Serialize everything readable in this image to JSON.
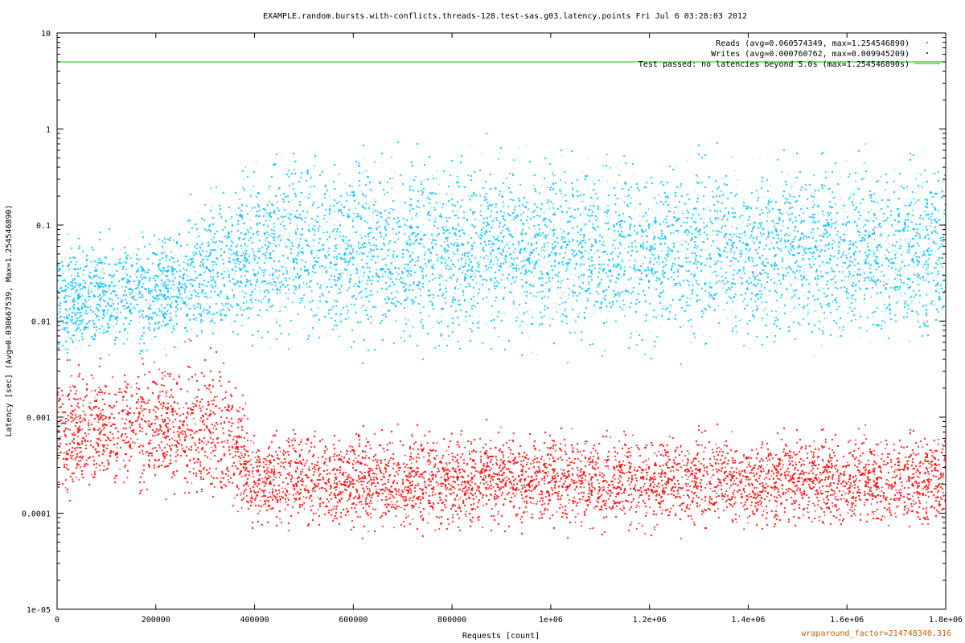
{
  "chart_data": {
    "type": "scatter",
    "title": "EXAMPLE.random.bursts.with-conflicts.threads-128.test-sas.g03.latency.points Fri Jul  6 03:28:03 2012",
    "xlabel": "Requests [count]",
    "ylabel": "Latency [sec]   (Avg=0.030667539, Max=1.254546890)",
    "x_scale": "linear",
    "y_scale": "log",
    "xlim": [
      0,
      1800000
    ],
    "ylim": [
      1e-05,
      10
    ],
    "x_ticks": [
      {
        "value": 0,
        "label": "0"
      },
      {
        "value": 200000,
        "label": "200000"
      },
      {
        "value": 400000,
        "label": "400000"
      },
      {
        "value": 600000,
        "label": "600000"
      },
      {
        "value": 800000,
        "label": "800000"
      },
      {
        "value": 1000000,
        "label": "1e+06"
      },
      {
        "value": 1200000,
        "label": "1.2e+06"
      },
      {
        "value": 1400000,
        "label": "1.4e+06"
      },
      {
        "value": 1600000,
        "label": "1.6e+06"
      },
      {
        "value": 1800000,
        "label": "1.8e+06"
      }
    ],
    "y_ticks": [
      {
        "value": 10,
        "label": "10"
      },
      {
        "value": 1,
        "label": "1"
      },
      {
        "value": 0.1,
        "label": "0.1"
      },
      {
        "value": 0.01,
        "label": "0.01"
      },
      {
        "value": 0.001,
        "label": "0.001"
      },
      {
        "value": 0.0001,
        "label": "0.0001"
      },
      {
        "value": 1e-05,
        "label": "1e-05"
      }
    ],
    "grid": false,
    "legend_position": "top-right",
    "series": [
      {
        "name": "Reads  (avg=0.060574349, max=1.254546890)",
        "kind": "points",
        "color": "#00bfff",
        "x_range": [
          0,
          1800000
        ],
        "avg": 0.060574349,
        "max": 1.25454689,
        "envelope": [
          {
            "x": 0,
            "low": 0.003,
            "high": 0.1
          },
          {
            "x": 200000,
            "low": 0.003,
            "high": 0.12
          },
          {
            "x": 300000,
            "low": 0.003,
            "high": 0.3
          },
          {
            "x": 400000,
            "low": 0.003,
            "high": 1.0
          },
          {
            "x": 600000,
            "low": 0.003,
            "high": 1.0
          },
          {
            "x": 1800000,
            "low": 0.003,
            "high": 1.0
          }
        ]
      },
      {
        "name": "Writes  (avg=0.000760762, max=0.009945209)",
        "kind": "points",
        "color": "#ff0000",
        "x_range": [
          0,
          1800000
        ],
        "avg": 0.000760762,
        "max": 0.009945209,
        "envelope": [
          {
            "x": 0,
            "low": 0.0001,
            "high": 0.005
          },
          {
            "x": 200000,
            "low": 0.0001,
            "high": 0.006
          },
          {
            "x": 350000,
            "low": 5e-05,
            "high": 0.008
          },
          {
            "x": 400000,
            "low": 5e-05,
            "high": 0.001
          },
          {
            "x": 1800000,
            "low": 5e-05,
            "high": 0.001
          }
        ]
      },
      {
        "name": "Test passed: no latencies beyond 5.0s (max=1.254546890s)",
        "kind": "line",
        "color": "#00c000",
        "y": 5.0
      }
    ],
    "annotation": "wraparound_factor=214748340.316"
  }
}
